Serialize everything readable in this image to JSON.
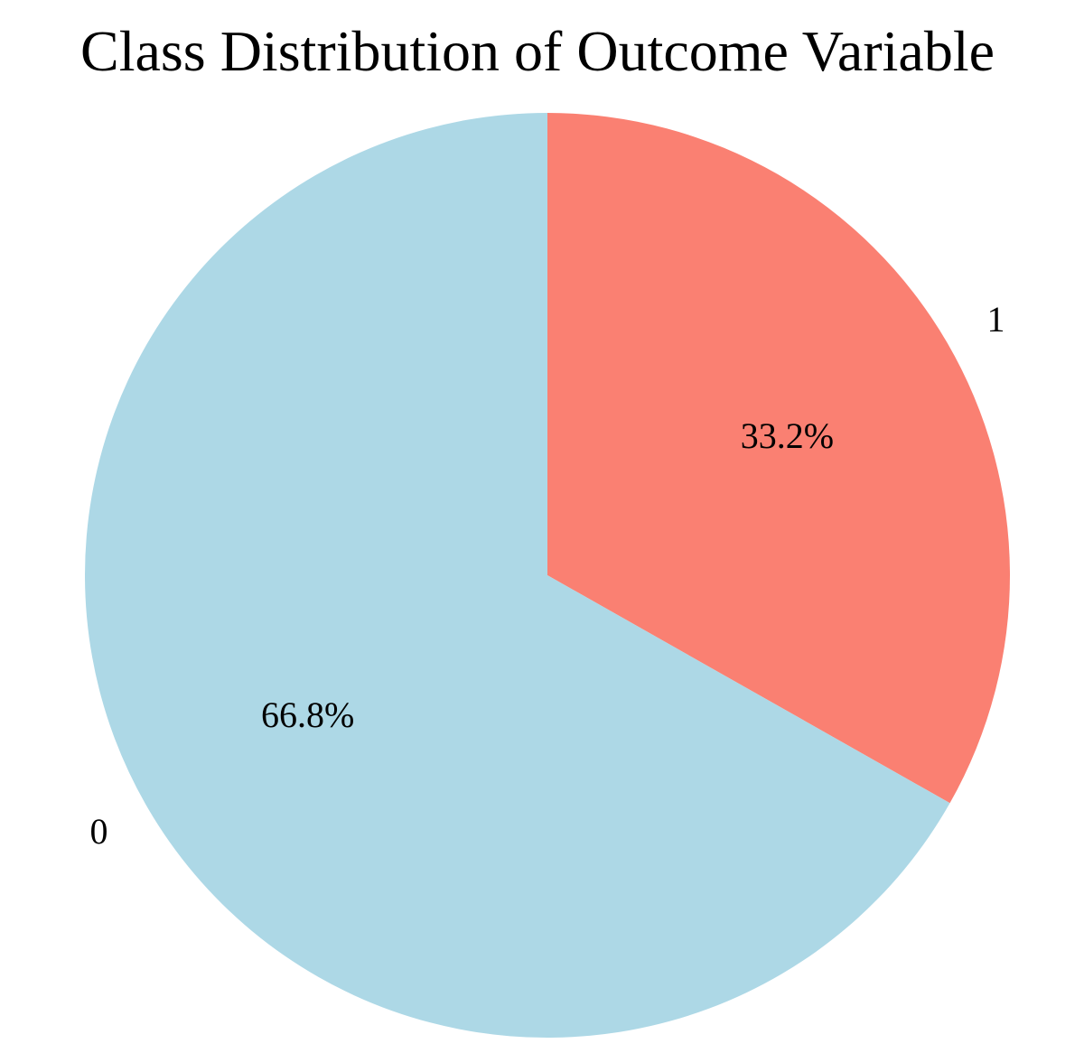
{
  "chart_data": {
    "type": "pie",
    "title": "Class Distribution of Outcome Variable",
    "categories": [
      "1",
      "0"
    ],
    "values": [
      33.2,
      66.8
    ],
    "percent_labels": [
      "33.2%",
      "66.8%"
    ],
    "colors": [
      "#fa8072",
      "#add8e6"
    ],
    "start_angle_deg": 90,
    "direction": "clockwise"
  }
}
